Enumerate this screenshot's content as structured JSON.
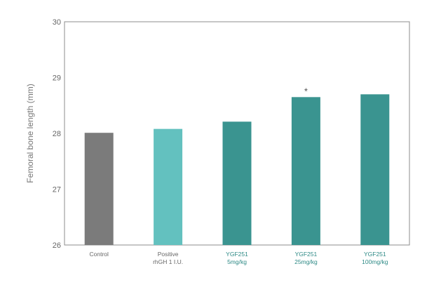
{
  "chart_data": {
    "type": "bar",
    "ylabel": "Femoral bone length (mm)",
    "ylim": [
      26,
      30
    ],
    "yticks": [
      26,
      27,
      28,
      29,
      30
    ],
    "grid": false,
    "categories": [
      [
        "Control"
      ],
      [
        "Positive",
        "rhGH  1  I.U."
      ],
      [
        "YGF251",
        "5mg/kg"
      ],
      [
        "YGF251",
        "25mg/kg"
      ],
      [
        "YGF251",
        "100mg/kg"
      ]
    ],
    "values": [
      28.01,
      28.08,
      28.21,
      28.65,
      28.7
    ],
    "bar_colors": [
      "#7b7b7b",
      "#63c1bf",
      "#3a9490",
      "#3a9490",
      "#3a9490"
    ],
    "label_colors": [
      "#666666",
      "#666666",
      "#2e8a86",
      "#2e8a86",
      "#2e8a86"
    ],
    "annotations": [
      {
        "category_index": 3,
        "text": "*"
      }
    ]
  }
}
